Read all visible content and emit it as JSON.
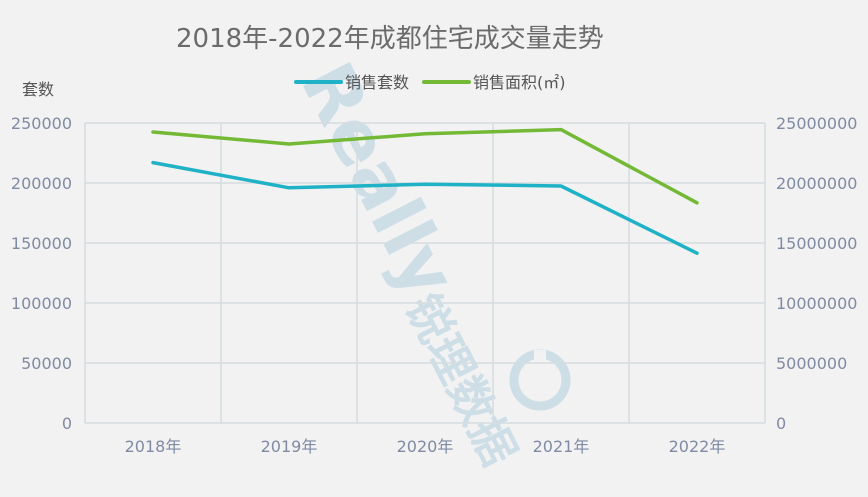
{
  "chart_data": {
    "type": "line",
    "title": "2018年-2022年成都住宅成交量走势",
    "categories": [
      "2018年",
      "2019年",
      "2020年",
      "2021年",
      "2022年"
    ],
    "y_left": {
      "label": "套数",
      "lim": [
        0,
        250000
      ],
      "ticks": [
        "0",
        "50000",
        "100000",
        "150000",
        "200000",
        "250000"
      ]
    },
    "y_right": {
      "label": "",
      "lim": [
        0,
        25000000
      ],
      "ticks": [
        "0",
        "5000000",
        "10000000",
        "15000000",
        "20000000",
        "25000000"
      ]
    },
    "series": [
      {
        "name": "销售套数",
        "axis": "left",
        "color": "#1fb2c6",
        "values": [
          217000,
          196000,
          199000,
          197500,
          141500
        ]
      },
      {
        "name": "销售面积(㎡)",
        "axis": "right",
        "color": "#73b935",
        "values": [
          24250000,
          23250000,
          24100000,
          24450000,
          18350000
        ]
      }
    ],
    "grid": true,
    "legend_position": "top-center"
  },
  "watermark": {
    "latin": "Really",
    "cjk": "锐理数据"
  }
}
